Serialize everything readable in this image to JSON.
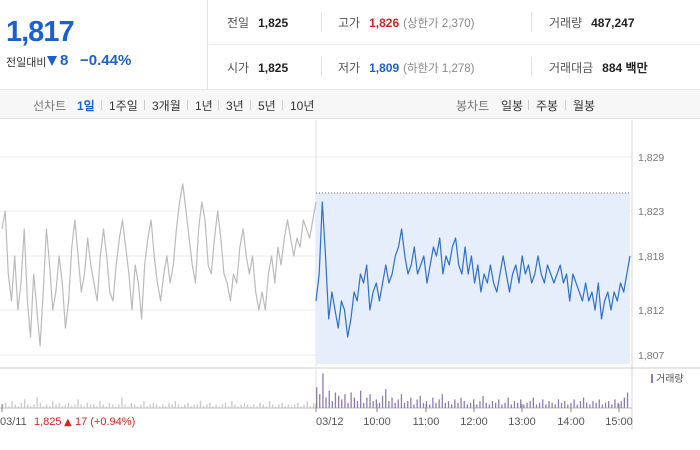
{
  "quote": {
    "price": "1,817",
    "prev_compare_label": "전일대비",
    "change_amount": "8",
    "change_percent": "−0.44%",
    "colors": {
      "down": "#1960d1",
      "up": "#e02020"
    }
  },
  "stats": {
    "prev_close": {
      "label": "전일",
      "value": "1,825"
    },
    "open": {
      "label": "시가",
      "value": "1,825"
    },
    "high": {
      "label": "고가",
      "value": "1,826",
      "sub": "(상한가 2,370)"
    },
    "low": {
      "label": "저가",
      "value": "1,809",
      "sub": "(하한가 1,278)"
    },
    "volume": {
      "label": "거래량",
      "value": "487,247"
    },
    "trade_value": {
      "label": "거래대금",
      "value": "884 백만"
    }
  },
  "toolbar": {
    "line_label": "선차트",
    "line_items": [
      "1일",
      "1주일",
      "3개월",
      "1년",
      "3년",
      "5년",
      "10년"
    ],
    "active_line_item": "1일",
    "candle_label": "봉차트",
    "candle_items": [
      "일봉",
      "주봉",
      "월봉"
    ]
  },
  "chart_data": {
    "type": "line",
    "ylim": [
      1806,
      1830
    ],
    "yticks": [
      "1,829",
      "1,823",
      "1,818",
      "1,812",
      "1,807"
    ],
    "ytick_values": [
      1829,
      1823,
      1818,
      1812,
      1807
    ],
    "xticks": [
      "03/11",
      "03/12",
      "10:00",
      "11:00",
      "12:00",
      "13:00",
      "14:00",
      "15:00"
    ],
    "prev_day_close": 1825,
    "prev_day_note": "1,825",
    "prev_day_change_glyph": "▲",
    "prev_day_change": "17 (+0.94%)",
    "volume_legend": "거래량",
    "series": [
      {
        "day": "03/11",
        "color": "#bbbbbb",
        "values": [
          1821,
          1823,
          1816,
          1813,
          1818,
          1812,
          1815,
          1821,
          1813,
          1809,
          1816,
          1812,
          1808,
          1814,
          1821,
          1817,
          1812,
          1814,
          1818,
          1815,
          1810,
          1813,
          1819,
          1822,
          1818,
          1814,
          1816,
          1820,
          1817,
          1815,
          1813,
          1818,
          1821,
          1818,
          1814,
          1813,
          1817,
          1820,
          1822,
          1819,
          1816,
          1812,
          1817,
          1815,
          1811,
          1817,
          1820,
          1822,
          1818,
          1815,
          1813,
          1816,
          1818,
          1815,
          1817,
          1821,
          1824,
          1826,
          1823,
          1820,
          1817,
          1815,
          1821,
          1824,
          1822,
          1817,
          1816,
          1820,
          1823,
          1820,
          1816,
          1815,
          1813,
          1816,
          1815,
          1819,
          1821,
          1818,
          1816,
          1818,
          1814,
          1812,
          1814,
          1812,
          1816,
          1818,
          1815,
          1819,
          1817,
          1820,
          1822,
          1820,
          1818,
          1820,
          1819,
          1822,
          1821,
          1820,
          1822,
          1824
        ]
      },
      {
        "day": "03/12",
        "color": "#2f6fd0",
        "values": [
          1813,
          1816,
          1824,
          1818,
          1811,
          1814,
          1812,
          1810,
          1813,
          1812,
          1809,
          1811,
          1814,
          1813,
          1816,
          1815,
          1817,
          1812,
          1814,
          1815,
          1813,
          1815,
          1817,
          1815,
          1816,
          1818,
          1819,
          1821,
          1818,
          1816,
          1817,
          1819,
          1816,
          1817,
          1818,
          1815,
          1817,
          1819,
          1818,
          1820,
          1816,
          1818,
          1817,
          1819,
          1820,
          1817,
          1816,
          1819,
          1816,
          1818,
          1815,
          1817,
          1814,
          1816,
          1815,
          1817,
          1815,
          1814,
          1816,
          1818,
          1816,
          1814,
          1816,
          1817,
          1815,
          1818,
          1816,
          1817,
          1815,
          1816,
          1818,
          1816,
          1815,
          1817,
          1816,
          1815,
          1816,
          1817,
          1815,
          1816,
          1813,
          1816,
          1815,
          1814,
          1813,
          1815,
          1813,
          1814,
          1812,
          1815,
          1811,
          1813,
          1814,
          1812,
          1814,
          1813,
          1815,
          1814,
          1816,
          1818
        ]
      }
    ],
    "volume": {
      "day1": [
        2,
        3,
        1,
        4,
        2,
        1,
        3,
        5,
        2,
        1,
        2,
        6,
        3,
        1,
        2,
        1,
        4,
        2,
        3,
        1,
        2,
        3,
        1,
        2,
        5,
        2,
        1,
        3,
        2,
        2,
        1,
        4,
        2,
        1,
        3,
        2,
        1,
        2,
        6,
        2,
        1,
        3,
        2,
        1,
        2,
        4,
        1,
        2,
        3,
        2,
        1,
        2,
        1,
        3,
        2,
        4,
        2,
        1,
        2,
        3,
        1,
        2,
        2,
        4,
        1,
        2,
        3,
        1,
        2,
        1,
        2,
        3,
        1,
        4,
        2,
        1,
        2,
        3,
        2,
        1,
        2,
        1,
        3,
        2,
        1,
        4,
        2,
        1,
        2,
        3,
        1,
        2,
        1,
        2,
        3,
        1,
        2,
        4,
        1,
        3
      ],
      "day2": [
        12,
        8,
        20,
        6,
        10,
        4,
        9,
        7,
        5,
        8,
        3,
        9,
        6,
        4,
        10,
        3,
        6,
        8,
        4,
        5,
        3,
        7,
        11,
        4,
        6,
        3,
        5,
        8,
        3,
        4,
        6,
        2,
        5,
        7,
        3,
        4,
        2,
        6,
        3,
        5,
        8,
        3,
        4,
        2,
        5,
        3,
        6,
        4,
        2,
        3,
        5,
        2,
        4,
        7,
        3,
        2,
        4,
        3,
        5,
        2,
        3,
        6,
        2,
        4,
        3,
        5,
        2,
        3,
        4,
        6,
        2,
        3,
        5,
        2,
        4,
        3,
        2,
        5,
        3,
        4,
        2,
        3,
        5,
        2,
        4,
        6,
        3,
        2,
        4,
        3,
        5,
        2,
        3,
        4,
        2,
        5,
        3,
        4,
        6,
        9
      ]
    }
  }
}
